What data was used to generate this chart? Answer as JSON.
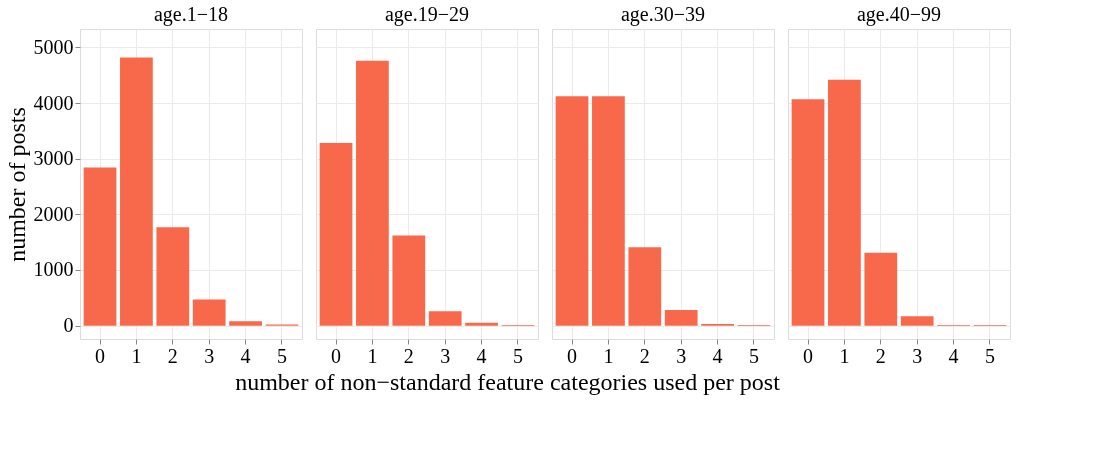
{
  "chart_data": [
    {
      "type": "bar",
      "title": "age.1−18",
      "ylabel": "number of posts",
      "xlabel": "number of non−standard feature categories used per post",
      "categories": [
        "0",
        "1",
        "2",
        "3",
        "4",
        "5"
      ],
      "values": [
        2840,
        4820,
        1770,
        470,
        80,
        20
      ],
      "color": "#f8694b",
      "ylim": [
        -240,
        5330
      ],
      "yticks": [
        0,
        1000,
        2000,
        3000,
        4000,
        5000
      ],
      "grid": true
    },
    {
      "type": "bar",
      "title": "age.19−29",
      "categories": [
        "0",
        "1",
        "2",
        "3",
        "4",
        "5"
      ],
      "values": [
        3280,
        4760,
        1620,
        260,
        50,
        10
      ],
      "color": "#f8694b",
      "ylim": [
        -240,
        5330
      ],
      "yticks": [
        0,
        1000,
        2000,
        3000,
        4000,
        5000
      ],
      "grid": true,
      "tick_labels": "x"
    },
    {
      "type": "bar",
      "title": "age.30−39",
      "categories": [
        "0",
        "1",
        "2",
        "3",
        "4",
        "5"
      ],
      "values": [
        4120,
        4120,
        1410,
        280,
        30,
        10
      ],
      "color": "#f8694b",
      "ylim": [
        -240,
        5330
      ],
      "yticks": [
        0,
        1000,
        2000,
        3000,
        4000,
        5000
      ],
      "grid": true,
      "tick_labels": "x"
    },
    {
      "type": "bar",
      "title": "age.40−99",
      "categories": [
        "0",
        "1",
        "2",
        "3",
        "4",
        "5"
      ],
      "values": [
        4070,
        4420,
        1310,
        170,
        10,
        10
      ],
      "color": "#f8694b",
      "ylim": [
        -240,
        5330
      ],
      "yticks": [
        0,
        1000,
        2000,
        3000,
        4000,
        5000
      ],
      "grid": true,
      "tick_labels": "x"
    }
  ]
}
